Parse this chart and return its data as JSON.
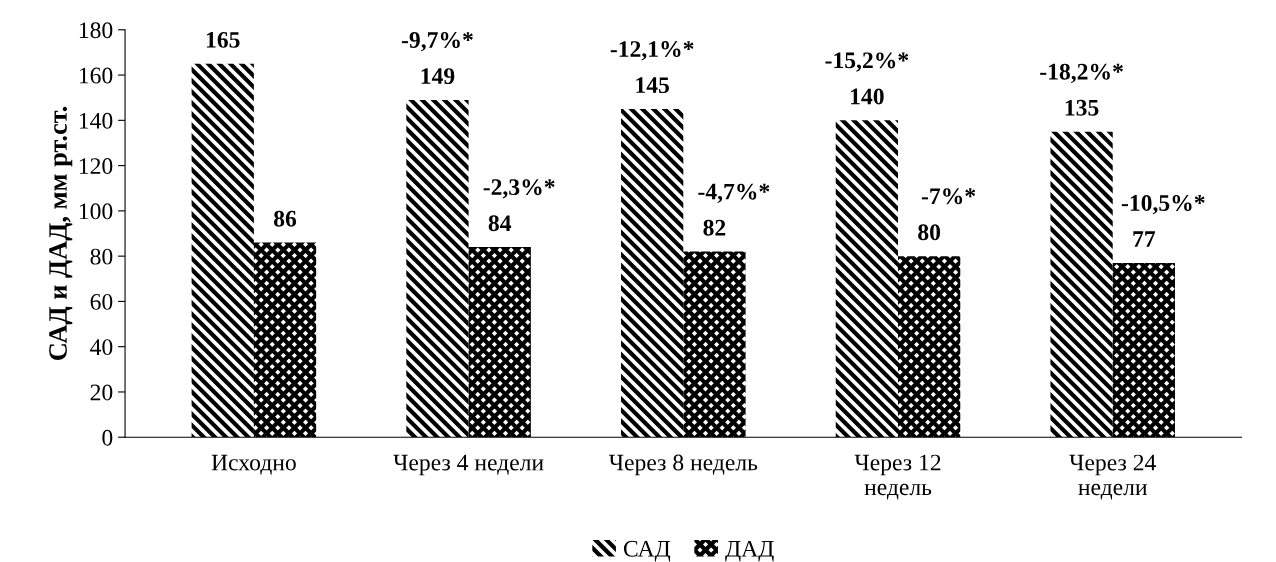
{
  "chart_data": {
    "type": "bar",
    "ylabel": "САД и ДАД, мм рт.ст.",
    "categories": [
      "Исходно",
      "Через 4 недели",
      "Через 8 недель",
      "Через 12\nнедель",
      "Через 24\nнедели"
    ],
    "series": [
      {
        "name": "САД",
        "color": "#000000",
        "values": [
          165,
          149,
          145,
          140,
          135
        ]
      },
      {
        "name": "ДАД",
        "color": "#000000",
        "values": [
          86,
          84,
          82,
          80,
          77
        ]
      }
    ],
    "ylim": [
      0,
      180
    ],
    "yticks": [
      0,
      20,
      40,
      60,
      80,
      100,
      120,
      140,
      160,
      180
    ],
    "data_labels": true,
    "grid": false,
    "legend": "bottom",
    "annotations": [
      {
        "text": "-9,7%*",
        "x": "Через 4 недели",
        "y": 149
      },
      {
        "text": "-12,1%*",
        "x": "Через 8 недель",
        "y": 145
      },
      {
        "text": "-15,2%*",
        "x": "Через 12\nнедель",
        "y": 140
      },
      {
        "text": "-18,2%*",
        "x": "Через 24\nнедели",
        "y": 135
      },
      {
        "text": "-2,3%*",
        "x": "Через 4 недели",
        "y": 84
      },
      {
        "text": "-4,7%*",
        "x": "Через 8 недель",
        "y": 82
      },
      {
        "text": "-7%*",
        "x": "Через 12\nнедель",
        "y": 80
      },
      {
        "text": "-10,5%*",
        "x": "Через 24\nнедели",
        "y": 77
      }
    ]
  }
}
